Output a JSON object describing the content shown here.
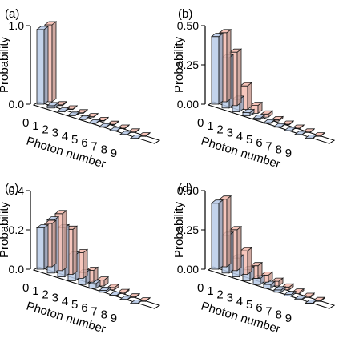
{
  "chart_data": [
    {
      "panel_label": "(a)",
      "type": "bar",
      "categories": [
        "0",
        "1",
        "2",
        "3",
        "4",
        "5",
        "6",
        "7",
        "8",
        "9"
      ],
      "series": [
        {
          "values": [
            0.95,
            0.03,
            0.01,
            0.005,
            0.004,
            0.003,
            0.002,
            0.001,
            0.001,
            0.001
          ],
          "color": "#b9cbe8"
        },
        {
          "values": [
            0.98,
            0.01,
            0.005,
            0.004,
            0.003,
            0.002,
            0.001,
            0.001,
            0.001,
            0.001
          ],
          "color": "#f4bcb0"
        }
      ],
      "ylabel": "Probability",
      "xlabel": "Photon number",
      "ylim": [
        0,
        1.0
      ],
      "yticks": [
        0,
        1
      ],
      "ytick_labels": [
        "0.0",
        "1.0"
      ],
      "grid": false,
      "view": "3d-bars"
    },
    {
      "panel_label": "(b)",
      "type": "bar",
      "categories": [
        "0",
        "1",
        "2",
        "3",
        "4",
        "5",
        "6",
        "7",
        "8",
        "9"
      ],
      "series": [
        {
          "values": [
            0.43,
            0.32,
            0.08,
            0.02,
            0.008,
            0.004,
            0.003,
            0.002,
            0.001,
            0.001
          ],
          "color": "#b9cbe8"
        },
        {
          "values": [
            0.44,
            0.34,
            0.15,
            0.05,
            0.02,
            0.008,
            0.004,
            0.002,
            0.001,
            0.001
          ],
          "color": "#f4bcb0"
        }
      ],
      "ylabel": "Probability",
      "xlabel": "Photon number",
      "ylim": [
        0,
        0.5
      ],
      "yticks": [
        0,
        0.25,
        0.5
      ],
      "ytick_labels": [
        "0.00",
        "0.25",
        "0.50"
      ],
      "grid": false,
      "view": "3d-bars"
    },
    {
      "panel_label": "(c)",
      "type": "bar",
      "categories": [
        "0",
        "1",
        "2",
        "3",
        "4",
        "5",
        "6",
        "7",
        "8",
        "9"
      ],
      "series": [
        {
          "values": [
            0.21,
            0.27,
            0.25,
            0.13,
            0.06,
            0.025,
            0.01,
            0.005,
            0.003,
            0.002
          ],
          "color": "#b9cbe8"
        },
        {
          "values": [
            0.22,
            0.29,
            0.23,
            0.13,
            0.06,
            0.03,
            0.012,
            0.006,
            0.003,
            0.002
          ],
          "color": "#f4bcb0"
        }
      ],
      "ylabel": "Probability",
      "xlabel": "Photon number",
      "ylim": [
        0,
        0.4
      ],
      "yticks": [
        0,
        0.2,
        0.4
      ],
      "ytick_labels": [
        "0.0",
        "0.2",
        "0.4"
      ],
      "grid": false,
      "view": "3d-bars"
    },
    {
      "panel_label": "(d)",
      "type": "bar",
      "categories": [
        "0",
        "1",
        "2",
        "3",
        "4",
        "5",
        "6",
        "7",
        "8",
        "9"
      ],
      "series": [
        {
          "values": [
            0.42,
            0.24,
            0.12,
            0.07,
            0.04,
            0.025,
            0.015,
            0.01,
            0.006,
            0.004
          ],
          "color": "#b9cbe8"
        },
        {
          "values": [
            0.43,
            0.26,
            0.15,
            0.08,
            0.045,
            0.03,
            0.018,
            0.01,
            0.007,
            0.005
          ],
          "color": "#f4bcb0"
        }
      ],
      "ylabel": "Probability",
      "xlabel": "Photon number",
      "ylim": [
        0,
        0.5
      ],
      "yticks": [
        0,
        0.25,
        0.5
      ],
      "ytick_labels": [
        "0.00",
        "0.25",
        "0.50"
      ],
      "grid": false,
      "view": "3d-bars"
    }
  ]
}
